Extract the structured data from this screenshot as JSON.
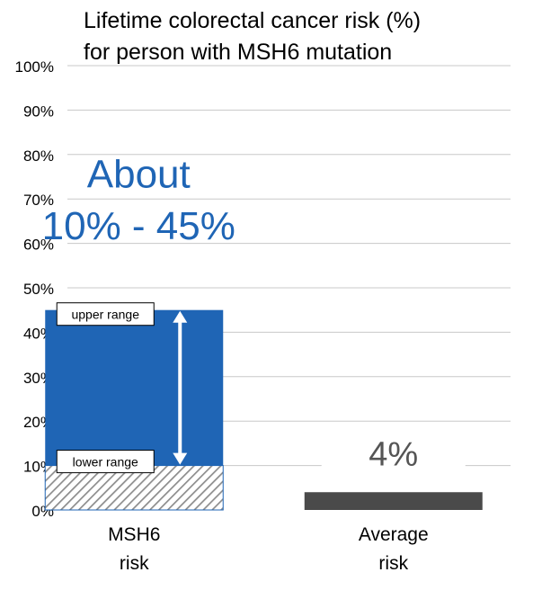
{
  "chart_data": {
    "type": "bar",
    "title_line1": "Lifetime colorectal cancer risk (%)",
    "title_line2": "for person with MSH6 mutation",
    "ylim": [
      0,
      100
    ],
    "yticks": [
      0,
      10,
      20,
      30,
      40,
      50,
      60,
      70,
      80,
      90,
      100
    ],
    "ytick_suffix": "%",
    "grid": true,
    "categories": [
      {
        "line1": "MSH6",
        "line2": "risk"
      },
      {
        "line1": "Average",
        "line2": "risk"
      }
    ],
    "bars": [
      {
        "low": 10,
        "high": 45,
        "range": true
      },
      {
        "value": 4,
        "range": false
      }
    ],
    "range_annotation": {
      "line1": "About",
      "line2": "10% - 45%"
    },
    "average_label": "4%",
    "upper_label": "upper range",
    "lower_label": "lower range",
    "colors": {
      "range_bar": "#1f65b5",
      "average_bar": "#4a4a4a",
      "annotation_text": "#1f65b5",
      "average_text": "#555555",
      "grid": "#c8c8c8",
      "hatch": "#8c8c8c"
    }
  }
}
